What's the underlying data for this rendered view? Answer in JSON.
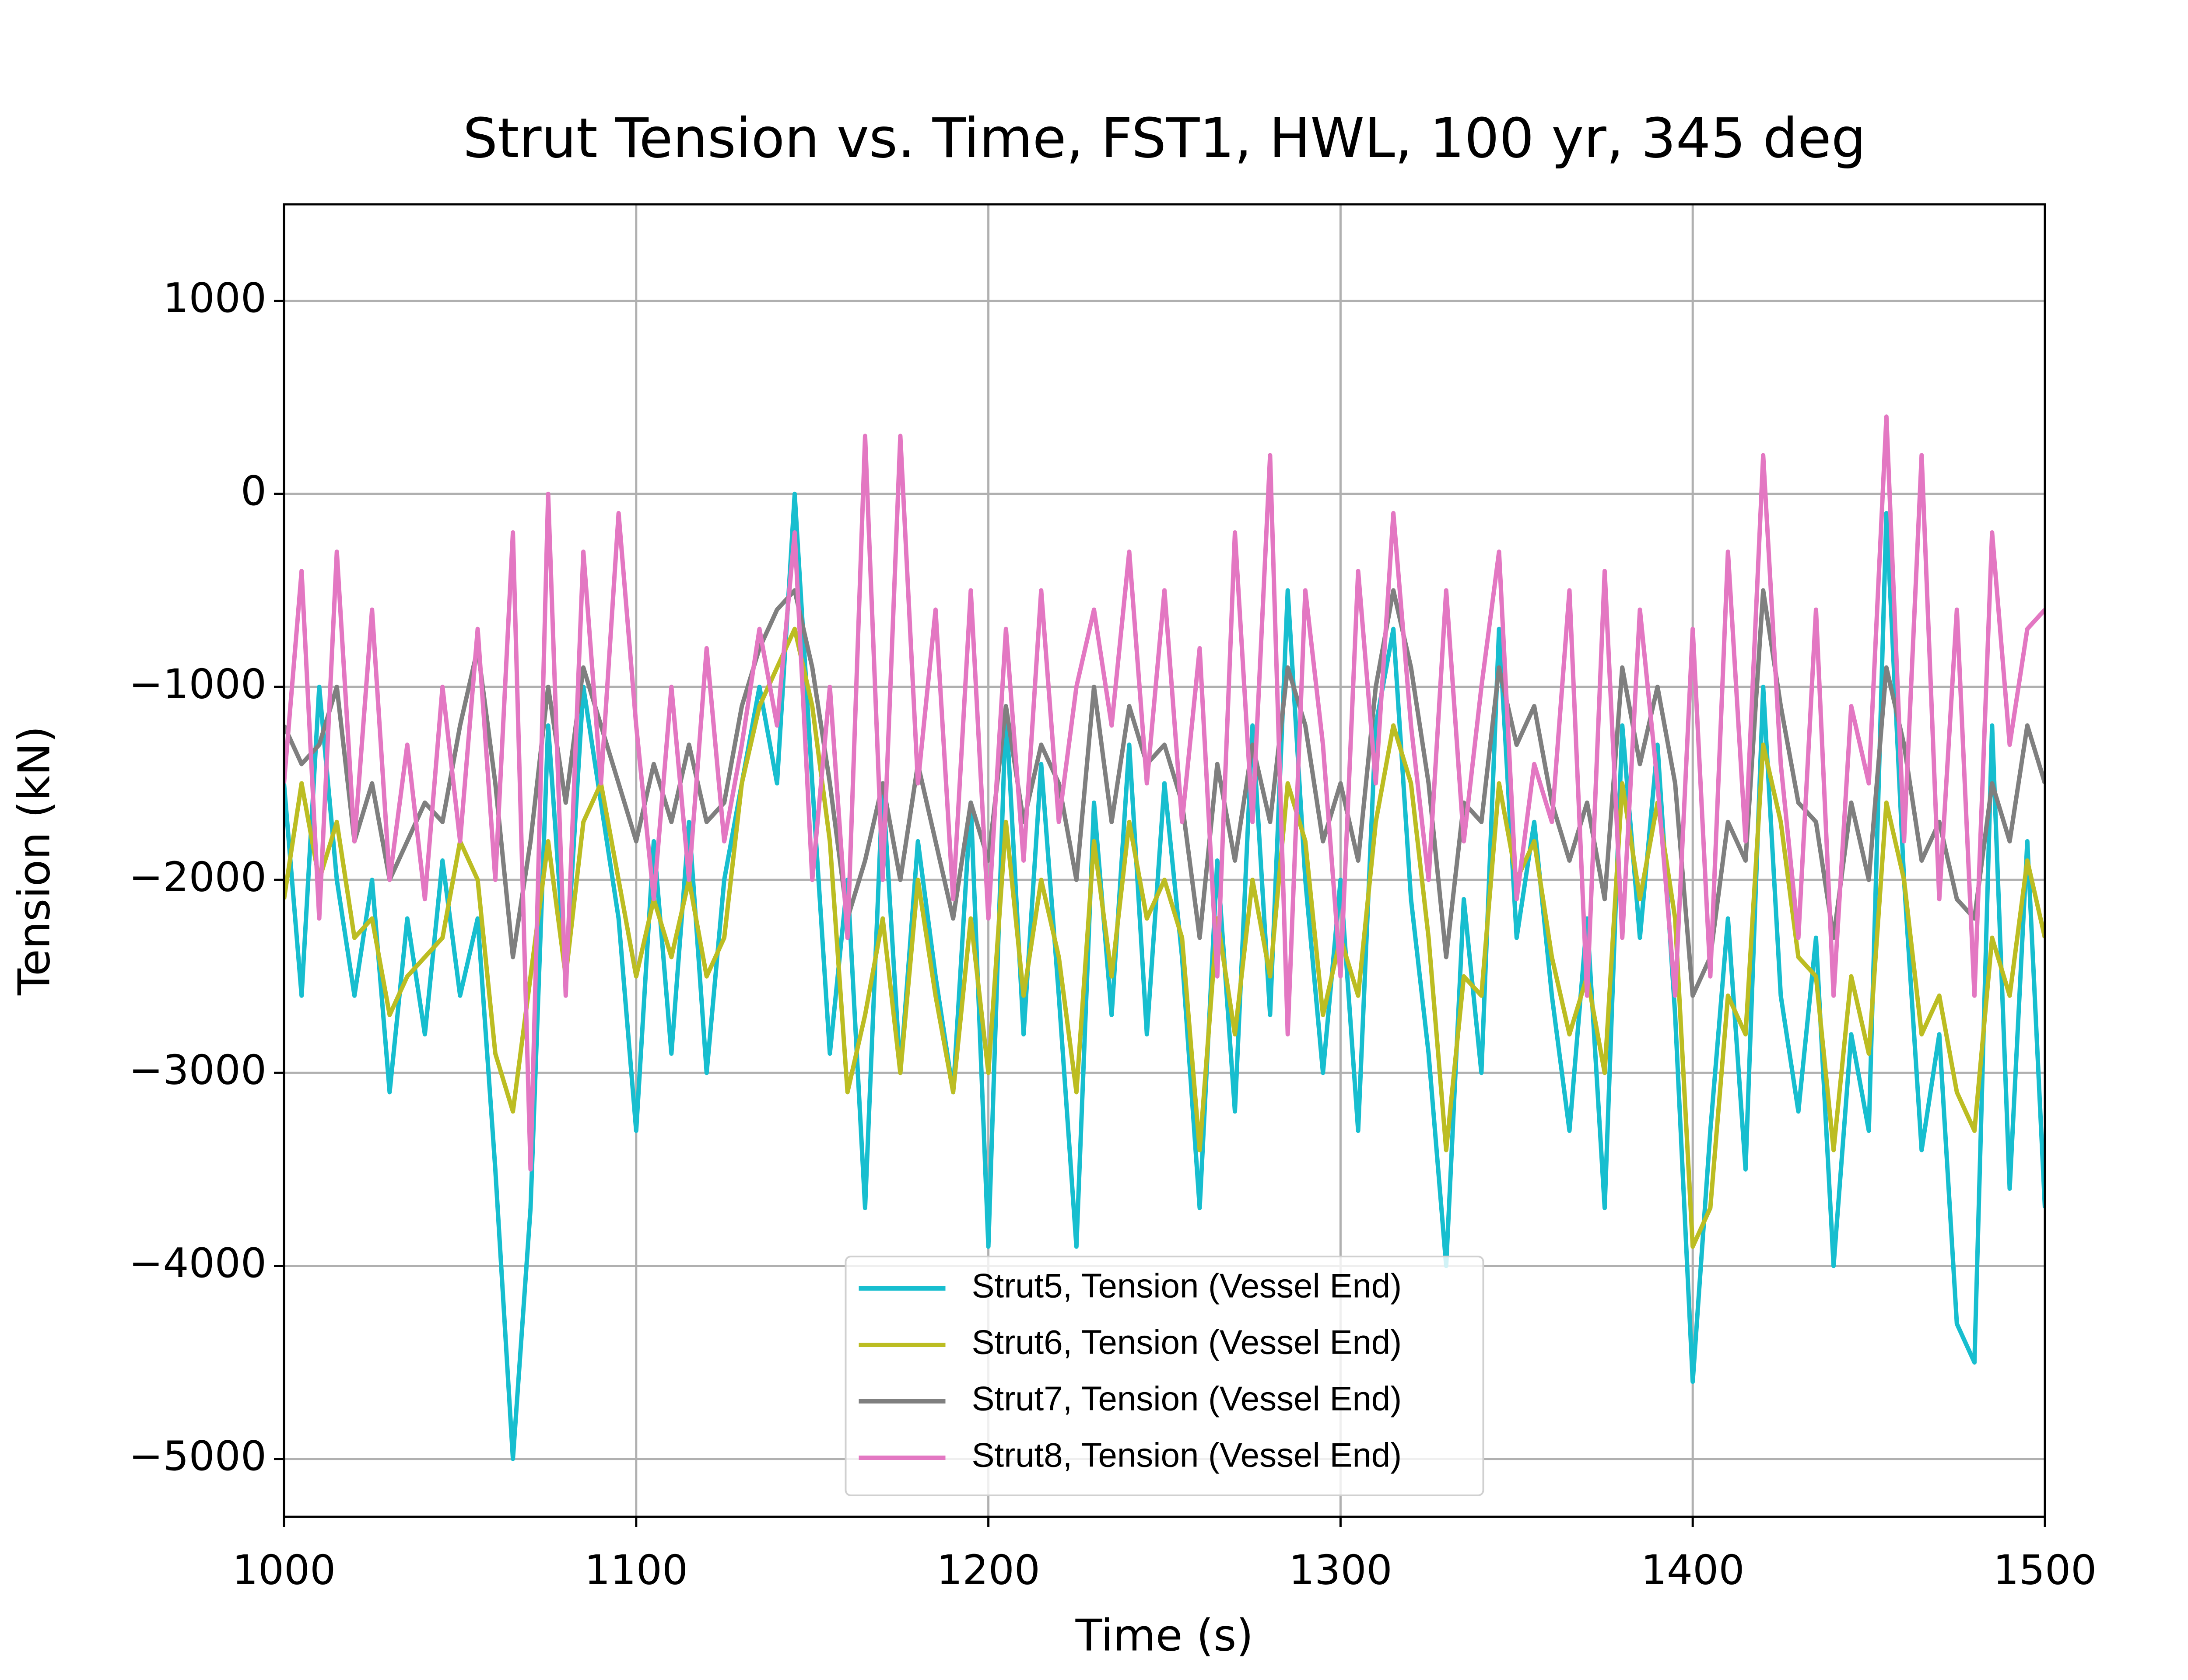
{
  "chart_data": {
    "type": "line",
    "title": "Strut Tension vs. Time, FST1, HWL, 100 yr, 345 deg",
    "xlabel": "Time (s)",
    "ylabel": "Tension (kN)",
    "x": [
      1000,
      1005,
      1010,
      1015,
      1020,
      1025,
      1030,
      1035,
      1040,
      1045,
      1050,
      1055,
      1060,
      1065,
      1070,
      1075,
      1080,
      1085,
      1090,
      1095,
      1100,
      1105,
      1110,
      1115,
      1120,
      1125,
      1130,
      1135,
      1140,
      1145,
      1150,
      1155,
      1160,
      1165,
      1170,
      1175,
      1180,
      1185,
      1190,
      1195,
      1200,
      1205,
      1210,
      1215,
      1220,
      1225,
      1230,
      1235,
      1240,
      1245,
      1250,
      1255,
      1260,
      1265,
      1270,
      1275,
      1280,
      1285,
      1290,
      1295,
      1300,
      1305,
      1310,
      1315,
      1320,
      1325,
      1330,
      1335,
      1340,
      1345,
      1350,
      1355,
      1360,
      1365,
      1370,
      1375,
      1380,
      1385,
      1390,
      1395,
      1400,
      1405,
      1410,
      1415,
      1420,
      1425,
      1430,
      1435,
      1440,
      1445,
      1450,
      1455,
      1460,
      1465,
      1470,
      1475,
      1480,
      1485,
      1490,
      1495,
      1500
    ],
    "series": [
      {
        "name": "Strut5, Tension (Vessel End)",
        "color": "#17becf",
        "values": [
          -1500,
          -2600,
          -1000,
          -2000,
          -2600,
          -2000,
          -3100,
          -2200,
          -2800,
          -1900,
          -2600,
          -2200,
          -3500,
          -5000,
          -3700,
          -1200,
          -2500,
          -1000,
          -1600,
          -2200,
          -3300,
          -1800,
          -2900,
          -1700,
          -3000,
          -2000,
          -1500,
          -1000,
          -1500,
          0,
          -1500,
          -2900,
          -2000,
          -3700,
          -1500,
          -3000,
          -1800,
          -2500,
          -3100,
          -1600,
          -3900,
          -1100,
          -2800,
          -1400,
          -2600,
          -3900,
          -1600,
          -2700,
          -1300,
          -2800,
          -1500,
          -2400,
          -3700,
          -1900,
          -3200,
          -1200,
          -2700,
          -500,
          -2000,
          -3000,
          -2000,
          -3300,
          -1200,
          -700,
          -2100,
          -2900,
          -4000,
          -2100,
          -3000,
          -700,
          -2300,
          -1700,
          -2600,
          -3300,
          -2200,
          -3700,
          -1200,
          -2300,
          -1300,
          -2700,
          -4600,
          -3300,
          -2200,
          -3500,
          -1000,
          -2600,
          -3200,
          -2300,
          -4000,
          -2800,
          -3300,
          -100,
          -2000,
          -3400,
          -2800,
          -4300,
          -4500,
          -1200,
          -3600,
          -1800,
          -3700
        ]
      },
      {
        "name": "Strut6, Tension (Vessel End)",
        "color": "#bcbd22",
        "values": [
          -2100,
          -1500,
          -2000,
          -1700,
          -2300,
          -2200,
          -2700,
          -2500,
          -2400,
          -2300,
          -1800,
          -2000,
          -2900,
          -3200,
          -2500,
          -1800,
          -2500,
          -1700,
          -1500,
          -2000,
          -2500,
          -2100,
          -2400,
          -2000,
          -2500,
          -2300,
          -1500,
          -1100,
          -900,
          -700,
          -1100,
          -1800,
          -3100,
          -2700,
          -2200,
          -3000,
          -2000,
          -2600,
          -3100,
          -2200,
          -3000,
          -1700,
          -2600,
          -2000,
          -2400,
          -3100,
          -1800,
          -2500,
          -1700,
          -2200,
          -2000,
          -2300,
          -3400,
          -2200,
          -2800,
          -2000,
          -2500,
          -1500,
          -1800,
          -2700,
          -2300,
          -2600,
          -1700,
          -1200,
          -1500,
          -2300,
          -3400,
          -2500,
          -2600,
          -1500,
          -2000,
          -1800,
          -2400,
          -2800,
          -2500,
          -3000,
          -1500,
          -2100,
          -1600,
          -2200,
          -3900,
          -3700,
          -2600,
          -2800,
          -1300,
          -1700,
          -2400,
          -2500,
          -3400,
          -2500,
          -2900,
          -1600,
          -2000,
          -2800,
          -2600,
          -3100,
          -3300,
          -2300,
          -2600,
          -1900,
          -2300
        ]
      },
      {
        "name": "Strut7, Tension (Vessel End)",
        "color": "#7f7f7f",
        "values": [
          -1200,
          -1400,
          -1300,
          -1000,
          -1800,
          -1500,
          -2000,
          -1800,
          -1600,
          -1700,
          -1200,
          -800,
          -1500,
          -2400,
          -1800,
          -1000,
          -1600,
          -900,
          -1200,
          -1500,
          -1800,
          -1400,
          -1700,
          -1300,
          -1700,
          -1600,
          -1100,
          -800,
          -600,
          -500,
          -900,
          -1500,
          -2200,
          -1900,
          -1500,
          -2000,
          -1400,
          -1800,
          -2200,
          -1600,
          -1900,
          -1100,
          -1700,
          -1300,
          -1500,
          -2000,
          -1000,
          -1700,
          -1100,
          -1400,
          -1300,
          -1600,
          -2300,
          -1400,
          -1900,
          -1300,
          -1700,
          -900,
          -1200,
          -1800,
          -1500,
          -1900,
          -1000,
          -500,
          -900,
          -1500,
          -2400,
          -1600,
          -1700,
          -900,
          -1300,
          -1100,
          -1600,
          -1900,
          -1600,
          -2100,
          -900,
          -1400,
          -1000,
          -1500,
          -2600,
          -2400,
          -1700,
          -1900,
          -500,
          -1100,
          -1600,
          -1700,
          -2300,
          -1600,
          -2000,
          -900,
          -1300,
          -1900,
          -1700,
          -2100,
          -2200,
          -1500,
          -1800,
          -1200,
          -1500
        ]
      },
      {
        "name": "Strut8, Tension (Vessel End)",
        "color": "#e377c2",
        "values": [
          -1500,
          -400,
          -2200,
          -300,
          -1800,
          -600,
          -2000,
          -1300,
          -2100,
          -1000,
          -1800,
          -700,
          -2000,
          -200,
          -3500,
          0,
          -2600,
          -300,
          -1500,
          -100,
          -1200,
          -2100,
          -1000,
          -2000,
          -800,
          -1800,
          -1300,
          -700,
          -1200,
          -200,
          -2000,
          -1000,
          -2300,
          300,
          -2000,
          300,
          -1500,
          -600,
          -2100,
          -500,
          -2200,
          -700,
          -1900,
          -500,
          -1700,
          -1000,
          -600,
          -1200,
          -300,
          -1500,
          -500,
          -1700,
          -800,
          -2500,
          -200,
          -1700,
          200,
          -2800,
          -500,
          -1300,
          -2500,
          -400,
          -1500,
          -100,
          -1200,
          -2000,
          -500,
          -1800,
          -1000,
          -300,
          -2100,
          -1400,
          -1700,
          -500,
          -2600,
          -400,
          -2300,
          -600,
          -1500,
          -2600,
          -700,
          -2500,
          -300,
          -1800,
          200,
          -1400,
          -2300,
          -600,
          -2600,
          -1100,
          -1500,
          400,
          -1800,
          200,
          -2100,
          -600,
          -2600,
          -200,
          -1300,
          -700,
          -600
        ]
      }
    ],
    "xlim": [
      1000,
      1500
    ],
    "ylim": [
      -5300,
      1500
    ],
    "xticks": [
      1000,
      1100,
      1200,
      1300,
      1400,
      1500
    ],
    "yticks": [
      {
        "value": -5000,
        "label": "−5000"
      },
      {
        "value": -4000,
        "label": "−4000"
      },
      {
        "value": -3000,
        "label": "−3000"
      },
      {
        "value": -2000,
        "label": "−2000"
      },
      {
        "value": -1000,
        "label": "−1000"
      },
      0,
      1000
    ],
    "grid": true,
    "legend": "lower center"
  }
}
